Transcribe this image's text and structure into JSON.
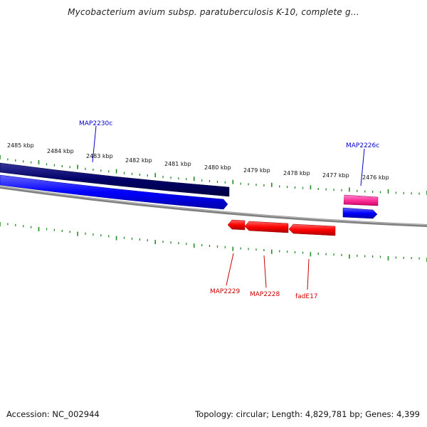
{
  "title": "Mycobacterium avium subsp. paratuberculosis K-10, complete g...",
  "footer": {
    "accession": "Accession: NC_002944",
    "summary": "Topology: circular; Length: 4,829,781 bp; Genes: 4,399"
  },
  "scale": {
    "tick_labels": [
      "2485 kbp",
      "2484 kbp",
      "2483 kbp",
      "2482 kbp",
      "2481 kbp",
      "2480 kbp",
      "2479 kbp",
      "2478 kbp",
      "2477 kbp",
      "2476 kbp"
    ]
  },
  "genes": [
    {
      "name": "MAP2230c",
      "strand": "minus",
      "track": "outer",
      "color": "#000066"
    },
    {
      "name": "MAP2226c",
      "strand": "minus",
      "track": "outer",
      "color": "#ff3399"
    },
    {
      "name": "MAP2229",
      "strand": "plus",
      "track": "inner",
      "color": "#ff0000"
    },
    {
      "name": "MAP2228",
      "strand": "plus",
      "track": "inner",
      "color": "#ff0000"
    },
    {
      "name": "fadE17",
      "strand": "plus",
      "track": "inner",
      "color": "#ff0000"
    }
  ],
  "colors": {
    "backbone": "#808080",
    "cds_outer": "#0000ff",
    "cds_dark": "#000066",
    "cds_pink": "#ff3399",
    "cds_red": "#ff0000",
    "label_blue": "#0000cc",
    "label_red": "#cc0000",
    "ticks": "#228b22"
  }
}
